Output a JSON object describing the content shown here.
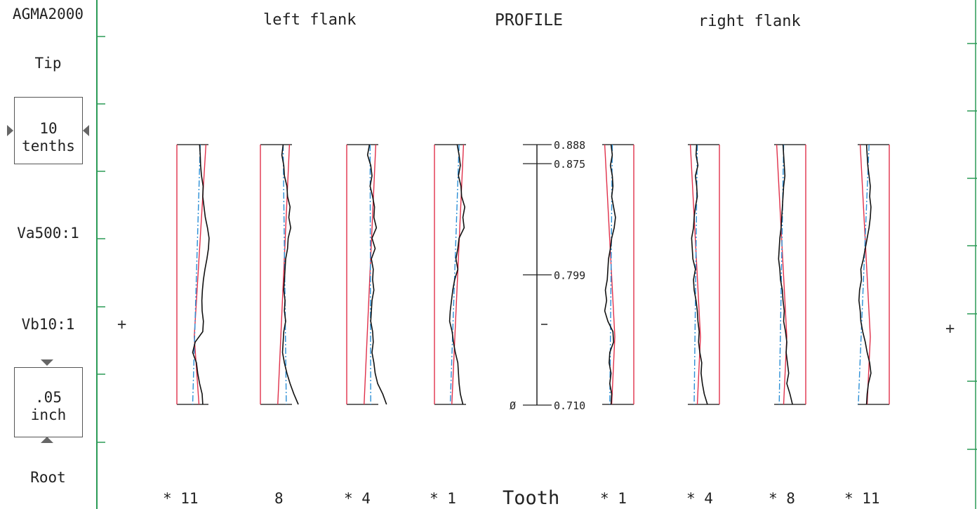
{
  "sidebar": {
    "standard": "AGMA2000",
    "tip": "Tip",
    "grid_value": "10",
    "grid_unit": "tenths",
    "va": "Va500:1",
    "vb": "Vb10:1",
    "scale_value": ".05",
    "scale_unit": "inch",
    "root": "Root"
  },
  "header": {
    "left": "left flank",
    "center": "PROFILE",
    "right": "right flank"
  },
  "footer": {
    "tooth_label": "Tooth",
    "left_teeth": [
      "* 11",
      "8",
      "* 4",
      "* 1"
    ],
    "right_teeth": [
      "* 1",
      "* 4",
      "* 8",
      "* 11"
    ]
  },
  "markers": {
    "left_plus": "+",
    "right_plus": "+"
  },
  "colors": {
    "tolerance": "#e0304a",
    "mean": "#2b8fd6",
    "trace": "#111111",
    "frame": "#2a9a56"
  },
  "chart_data": {
    "type": "line",
    "title": "PROFILE",
    "axis": {
      "zero_label": "Ø",
      "ticks": [
        {
          "value": 0.888,
          "label": "0.888"
        },
        {
          "value": 0.875,
          "label": "0.875"
        },
        {
          "value": 0.799,
          "label": "0.799"
        },
        {
          "value": 0.71,
          "label": "0.710"
        }
      ],
      "range": [
        0.71,
        0.888
      ]
    },
    "panels": [
      {
        "flank": "left",
        "tooth": "11",
        "trace": [
          0.0,
          0.05,
          0.08,
          0.15,
          0.28,
          0.25,
          0.35,
          0.45,
          0.62,
          0.75,
          0.7,
          0.58,
          0.42,
          0.3,
          0.22,
          0.18,
          0.2,
          0.3,
          0.25,
          -0.35,
          -0.55,
          -0.25,
          -0.15,
          0.0,
          0.2,
          0.25
        ],
        "mean_offset": [
          0.05,
          -0.55
        ]
      },
      {
        "flank": "left",
        "tooth": "8",
        "trace": [
          0.0,
          -0.1,
          0.05,
          0.1,
          0.3,
          0.35,
          0.55,
          0.45,
          0.6,
          0.4,
          0.35,
          0.2,
          0.15,
          0.1,
          0.05,
          0.15,
          0.1,
          0.2,
          0.05,
          0.0,
          -0.05,
          0.1,
          0.3,
          0.55,
          0.85,
          1.2
        ],
        "mean_offset": [
          0.0,
          0.25
        ]
      },
      {
        "flank": "left",
        "tooth": "4",
        "trace": [
          0.0,
          -0.15,
          0.1,
          0.2,
          0.05,
          0.25,
          0.4,
          0.35,
          0.55,
          0.2,
          0.45,
          0.15,
          0.3,
          0.25,
          0.35,
          0.2,
          0.15,
          0.1,
          0.25,
          0.3,
          0.2,
          0.35,
          0.45,
          0.65,
          1.05,
          1.35
        ],
        "mean_offset": [
          0.05,
          0.1
        ]
      },
      {
        "flank": "left",
        "tooth": "1",
        "trace": [
          0.0,
          0.15,
          0.25,
          0.1,
          0.3,
          0.35,
          0.6,
          0.45,
          0.55,
          0.15,
          0.05,
          -0.1,
          0.05,
          -0.2,
          -0.35,
          -0.45,
          -0.55,
          -0.6,
          -0.4,
          -0.3,
          -0.15,
          0.05,
          0.1,
          0.15,
          0.25,
          0.45
        ],
        "mean_offset": [
          0.15,
          -0.55
        ]
      },
      {
        "flank": "right",
        "tooth": "1",
        "trace": [
          0.0,
          0.1,
          -0.05,
          0.1,
          0.15,
          0.05,
          0.2,
          0.35,
          0.25,
          0.05,
          -0.05,
          -0.2,
          -0.25,
          -0.3,
          -0.45,
          -0.35,
          -0.5,
          -0.25,
          0.15,
          0.2,
          -0.1,
          -0.15,
          0.0,
          -0.1,
          0.05,
          0.0
        ],
        "mean_offset": [
          0.1,
          -0.1
        ]
      },
      {
        "flank": "right",
        "tooth": "4",
        "trace": [
          0.0,
          -0.05,
          0.1,
          -0.1,
          0.0,
          0.05,
          -0.1,
          -0.2,
          -0.25,
          -0.4,
          -0.35,
          -0.3,
          -0.1,
          -0.25,
          -0.2,
          -0.05,
          0.05,
          0.1,
          0.2,
          0.15,
          0.25,
          0.4,
          0.35,
          0.45,
          0.6,
          0.85
        ],
        "mean_offset": [
          0.05,
          -0.2
        ]
      },
      {
        "flank": "right",
        "tooth": "8",
        "trace": [
          0.0,
          0.05,
          0.1,
          0.15,
          0.05,
          0.0,
          -0.05,
          -0.1,
          -0.15,
          -0.25,
          -0.3,
          -0.35,
          -0.25,
          -0.2,
          -0.05,
          0.0,
          0.1,
          0.05,
          0.2,
          0.3,
          0.25,
          0.35,
          0.45,
          0.3,
          0.55,
          0.75
        ],
        "mean_offset": [
          0.05,
          -0.3
        ]
      },
      {
        "flank": "right",
        "tooth": "11",
        "trace": [
          0.0,
          0.05,
          0.1,
          0.2,
          0.3,
          0.25,
          0.35,
          0.3,
          0.2,
          0.05,
          -0.1,
          -0.25,
          -0.45,
          -0.4,
          -0.55,
          -0.6,
          -0.5,
          -0.45,
          -0.3,
          -0.1,
          0.05,
          0.25,
          0.35,
          0.15,
          0.05,
          0.0
        ],
        "mean_offset": [
          0.2,
          -0.65
        ]
      }
    ]
  }
}
